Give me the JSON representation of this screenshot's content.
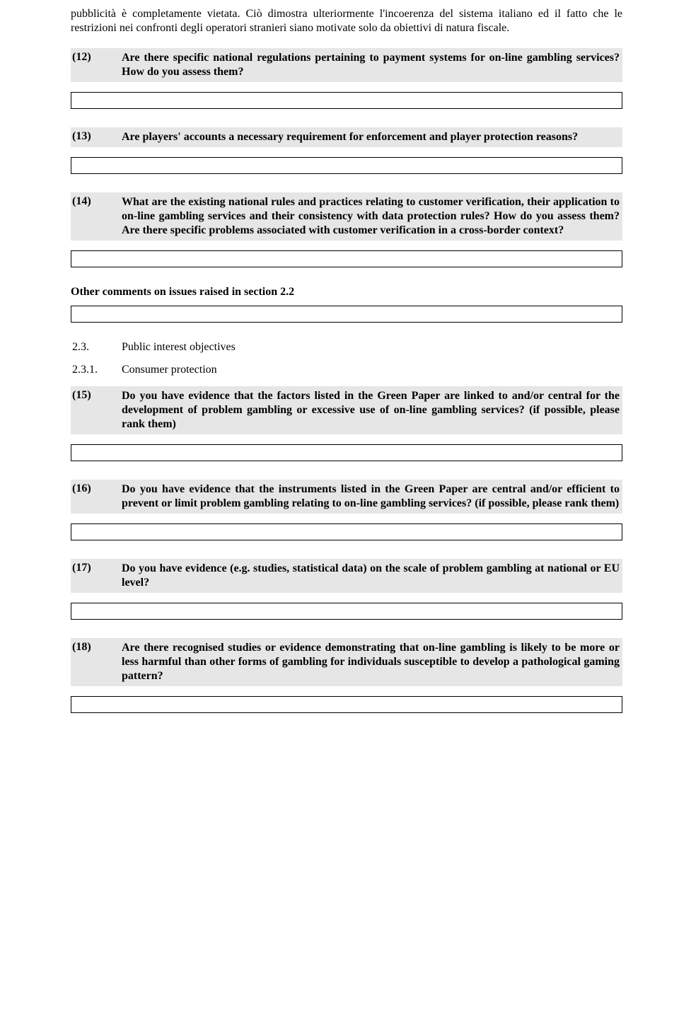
{
  "intro_text": "pubblicità è completamente vietata. Ciò dimostra ulteriormente l'incoerenza del sistema italiano ed il fatto che le restrizioni nei confronti degli operatori stranieri siano motivate solo da obiettivi di natura fiscale.",
  "q12": {
    "num": "(12)",
    "text": "Are there specific national regulations pertaining to payment systems for on-line gambling services? How do you assess them?"
  },
  "q13": {
    "num": "(13)",
    "text": "Are players' accounts a necessary requirement for enforcement and player protection reasons?"
  },
  "q14": {
    "num": "(14)",
    "text": "What are the existing national rules and practices relating to customer verification, their application to on-line gambling services and their consistency with data protection rules? How do you assess them? Are there specific problems associated with customer verification in a cross-border context?"
  },
  "other_comments": "Other comments on issues raised in section 2.2",
  "sec23": {
    "num": "2.3.",
    "text": "Public interest objectives"
  },
  "sec231": {
    "num": "2.3.1.",
    "text": "Consumer protection"
  },
  "q15": {
    "num": "(15)",
    "text": "Do you have evidence that the factors listed in the Green Paper are linked to and/or central for the development of problem gambling or excessive use of on-line gambling services? (if possible, please rank them)"
  },
  "q16": {
    "num": "(16)",
    "text": "Do you have evidence that the instruments listed in the Green Paper are central and/or efficient to prevent or limit problem gambling relating to on-line gambling services? (if possible, please rank them)"
  },
  "q17": {
    "num": "(17)",
    "text": "Do you have evidence (e.g. studies, statistical data) on the scale of problem gambling at national or EU level?"
  },
  "q18": {
    "num": "(18)",
    "text": "Are there recognised studies or evidence demonstrating that on-line gambling is likely to be more or less harmful than other forms of gambling for individuals susceptible to develop a pathological gaming pattern?"
  }
}
